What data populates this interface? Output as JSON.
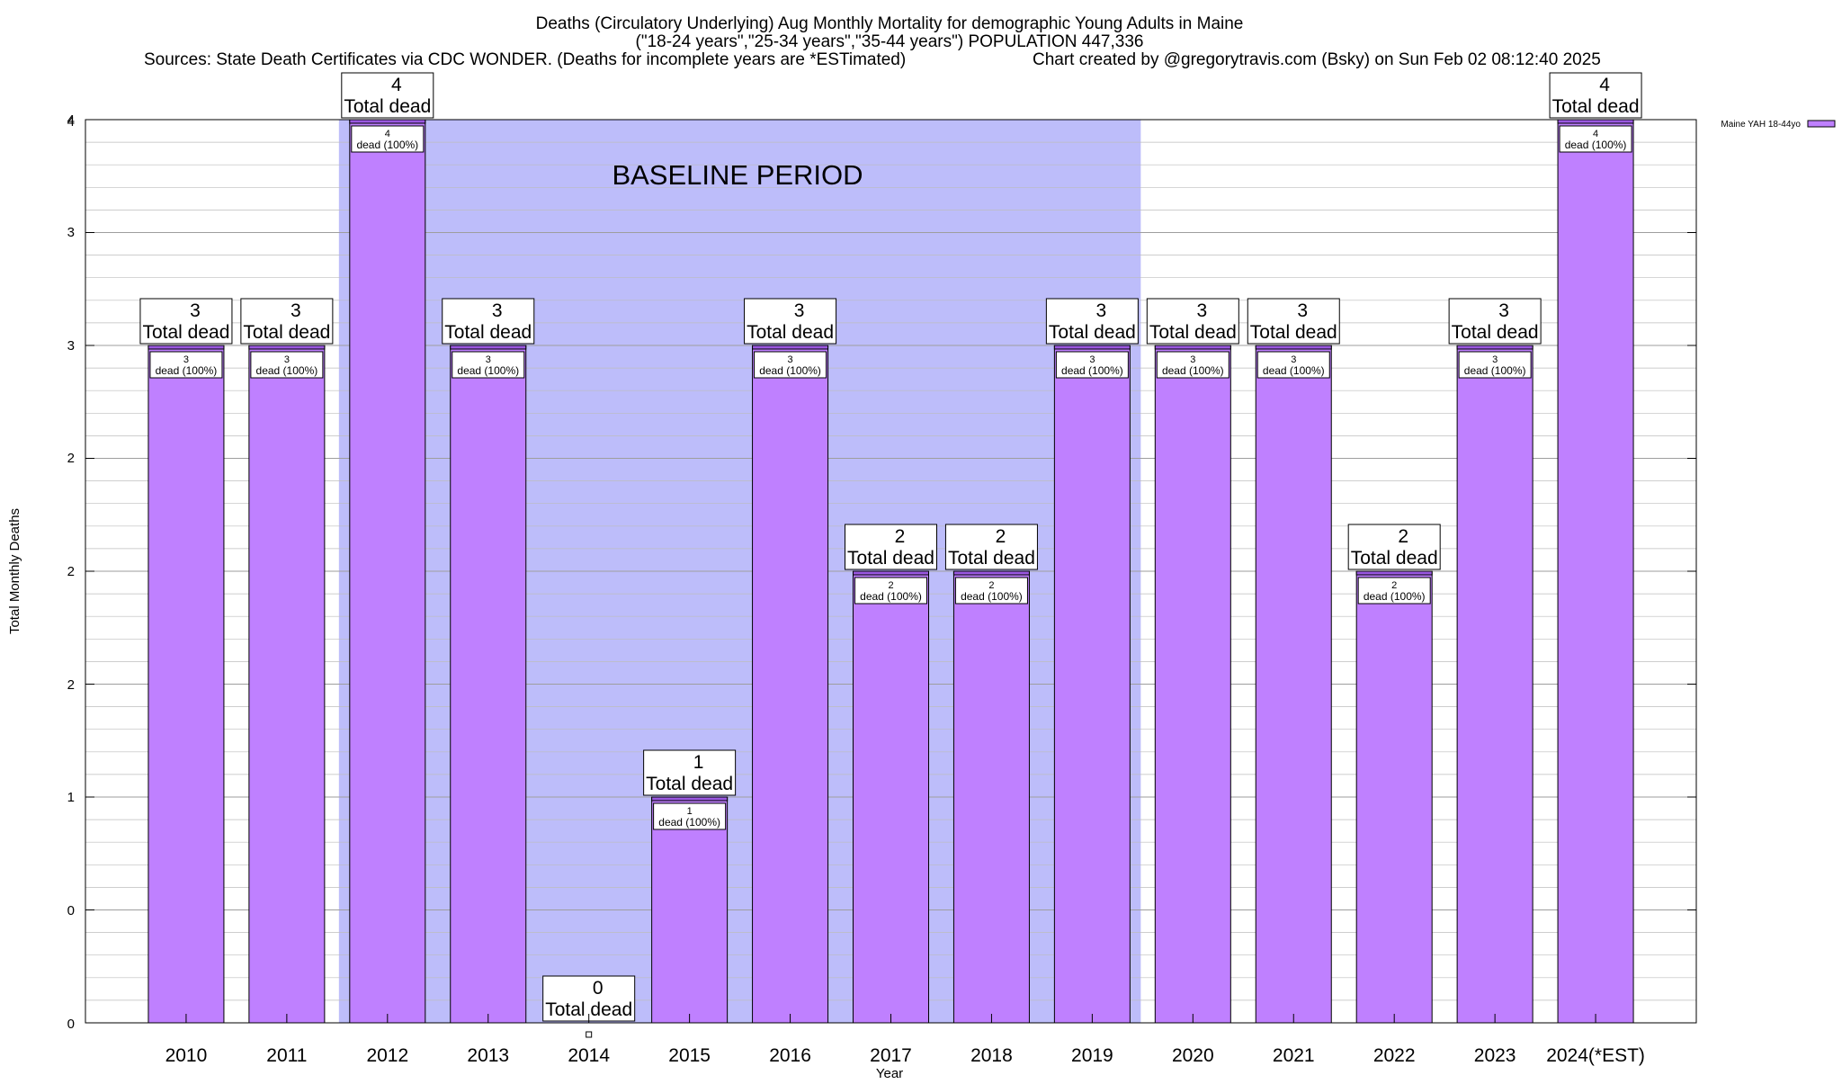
{
  "chart_data": {
    "type": "bar",
    "title_lines": [
      "Deaths (Circulatory Underlying) Aug Monthly Mortality for demographic Young Adults in Maine",
      "(\"18-24 years\",\"25-34 years\",\"35-44 years\") POPULATION 447,336"
    ],
    "sources_text": "Sources: State Death Certificates via CDC WONDER. (Deaths for incomplete years are *ESTimated)",
    "credit_text": "Chart created by @gregorytravis.com (Bsky) on Sun Feb 02 08:12:40 2025",
    "xlabel": "Year",
    "ylabel": "Total Monthly Deaths",
    "ylim": [
      0,
      4
    ],
    "y_tick_labels": [
      "0",
      "0",
      "1",
      "2",
      "2",
      "2",
      "3",
      "3",
      "4",
      "4"
    ],
    "grid": true,
    "legend": {
      "position": "top-right",
      "label": "Maine YAH 18-44yo"
    },
    "baseline": {
      "label": "BASELINE PERIOD",
      "start": "2012",
      "end": "2019"
    },
    "total_label_suffix": "Total dead",
    "inner_label_suffix": "dead (100%)",
    "categories": [
      "2010",
      "2011",
      "2012",
      "2013",
      "2014",
      "2015",
      "2016",
      "2017",
      "2018",
      "2019",
      "2020",
      "2021",
      "2022",
      "2023",
      "2024(*EST)"
    ],
    "values": [
      3,
      3,
      4,
      3,
      0,
      1,
      3,
      2,
      2,
      3,
      3,
      3,
      2,
      3,
      4
    ],
    "colors": {
      "bar": "#bf80ff",
      "bar_cap": "#9a58e0",
      "baseline_fill": "#bdbdfa",
      "grid": "#bdbdbd"
    }
  }
}
